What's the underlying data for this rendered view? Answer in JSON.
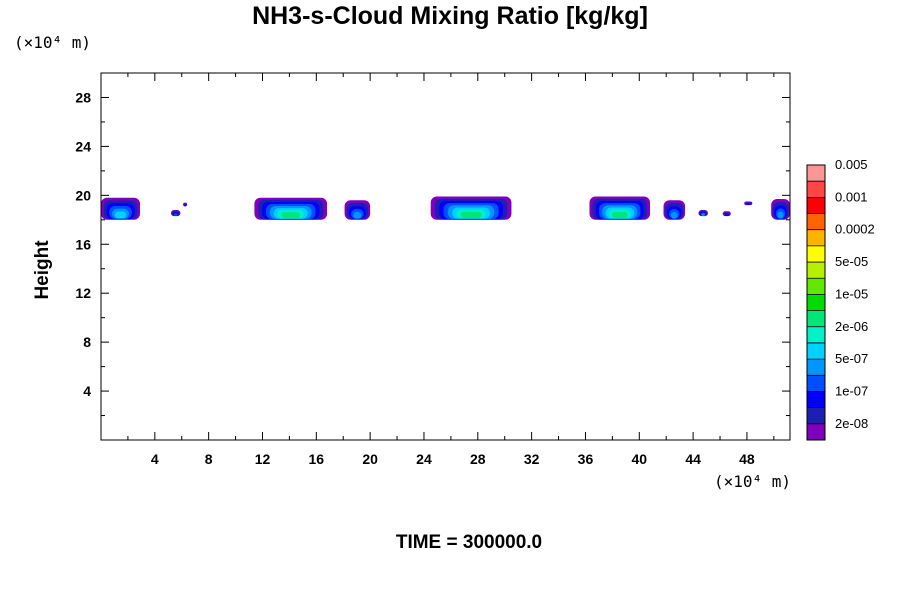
{
  "chart_data": {
    "type": "heatmap",
    "title": "NH3-s-Cloud Mixing Ratio [kg/kg]",
    "ylabel": "Height",
    "x_unit": "(×10⁴ m)",
    "y_unit": "(×10⁴ m)",
    "xlim": [
      0,
      51.2
    ],
    "ylim": [
      0,
      30
    ],
    "x_ticks": [
      4,
      8,
      12,
      16,
      20,
      24,
      28,
      32,
      36,
      40,
      44,
      48
    ],
    "y_ticks": [
      4,
      8,
      12,
      16,
      20,
      24,
      28
    ],
    "footer": "TIME = 300000.0",
    "colorbar": {
      "colors": [
        "#7f00bf",
        "#1e1eb4",
        "#0000ff",
        "#0050ff",
        "#0096ff",
        "#00d2ff",
        "#00f0c8",
        "#00e678",
        "#00dc00",
        "#64e600",
        "#b4f000",
        "#ffff00",
        "#ffb400",
        "#ff6400",
        "#ff0000",
        "#ff4646",
        "#ff9696"
      ],
      "labels": [
        "2e-08",
        "1e-07",
        "5e-07",
        "2e-06",
        "1e-05",
        "5e-05",
        "0.0002",
        "0.001",
        "0.005"
      ]
    },
    "clouds": [
      {
        "x0": 0.0,
        "x1": 2.9,
        "y_bottom": 18.0,
        "y_top": 19.8,
        "peak_level": 5
      },
      {
        "x0": 11.4,
        "x1": 16.8,
        "y_bottom": 18.0,
        "y_top": 19.8,
        "peak_level": 7
      },
      {
        "x0": 18.1,
        "x1": 20.0,
        "y_bottom": 18.0,
        "y_top": 19.6,
        "peak_level": 4
      },
      {
        "x0": 24.5,
        "x1": 30.5,
        "y_bottom": 18.0,
        "y_top": 19.9,
        "peak_level": 7
      },
      {
        "x0": 36.3,
        "x1": 40.8,
        "y_bottom": 18.0,
        "y_top": 19.9,
        "peak_level": 7
      },
      {
        "x0": 41.8,
        "x1": 43.4,
        "y_bottom": 18.0,
        "y_top": 19.6,
        "peak_level": 4
      },
      {
        "x0": 49.8,
        "x1": 51.2,
        "y_bottom": 18.0,
        "y_top": 19.7,
        "peak_level": 4
      },
      {
        "x0": 5.2,
        "x1": 5.9,
        "y_bottom": 18.3,
        "y_top": 18.8,
        "peak_level": 3
      },
      {
        "x0": 44.4,
        "x1": 45.1,
        "y_bottom": 18.3,
        "y_top": 18.8,
        "peak_level": 4
      },
      {
        "x0": 46.2,
        "x1": 46.8,
        "y_bottom": 18.3,
        "y_top": 18.7,
        "peak_level": 2
      },
      {
        "x0": 6.1,
        "x1": 6.4,
        "y_bottom": 19.1,
        "y_top": 19.4,
        "peak_level": 2
      },
      {
        "x0": 47.8,
        "x1": 48.4,
        "y_bottom": 19.2,
        "y_top": 19.5,
        "peak_level": 2
      }
    ]
  }
}
